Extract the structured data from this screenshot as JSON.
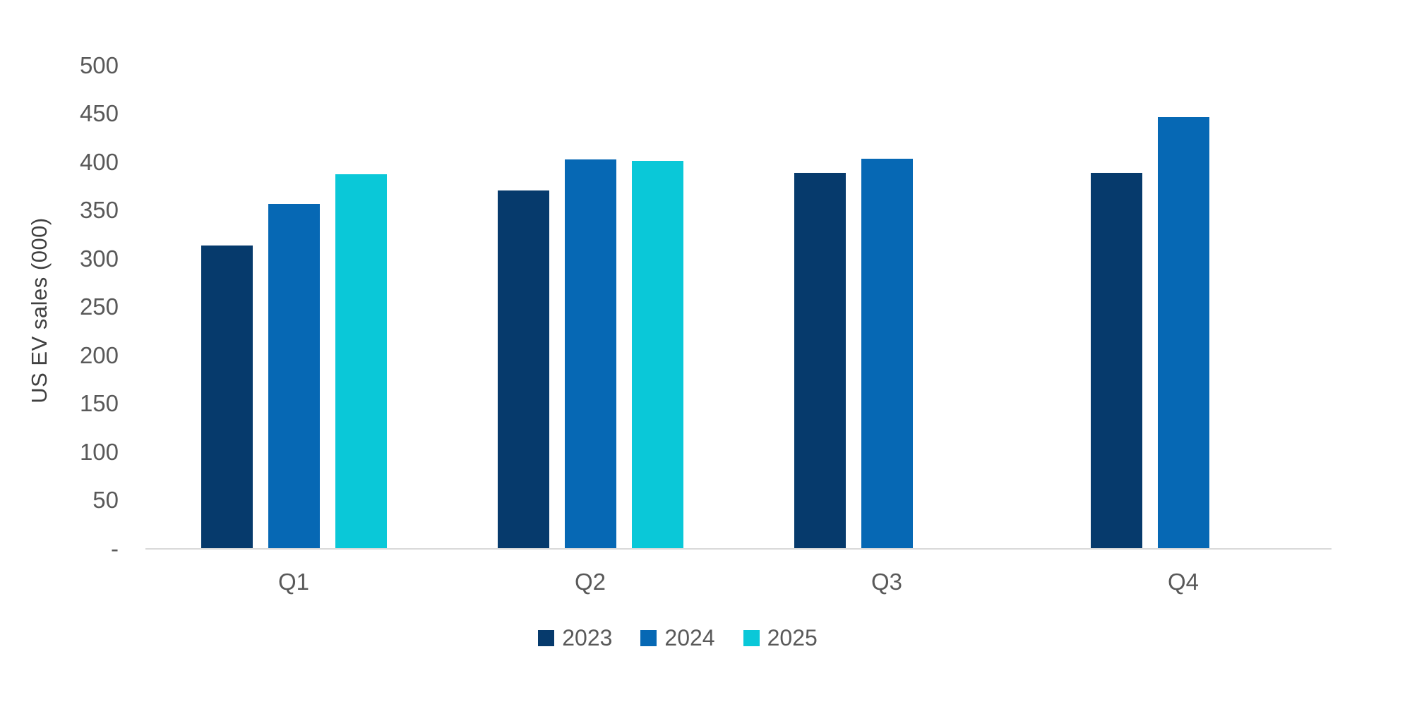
{
  "chart_data": {
    "type": "bar",
    "title": "",
    "xlabel": "",
    "ylabel": "US EV sales (000)",
    "categories": [
      "Q1",
      "Q2",
      "Q3",
      "Q4"
    ],
    "series": [
      {
        "name": "2023",
        "color": "#063a6c",
        "values": [
          313,
          370,
          388,
          388
        ]
      },
      {
        "name": "2024",
        "color": "#0668b4",
        "values": [
          356,
          402,
          403,
          446
        ]
      },
      {
        "name": "2025",
        "color": "#0ac8d8",
        "values": [
          387,
          401,
          null,
          null
        ]
      }
    ],
    "ylim": [
      0,
      500
    ],
    "yticks": [
      {
        "label": "500",
        "value": 500
      },
      {
        "label": "450",
        "value": 450
      },
      {
        "label": "400",
        "value": 400
      },
      {
        "label": "350",
        "value": 350
      },
      {
        "label": "300",
        "value": 300
      },
      {
        "label": "250",
        "value": 250
      },
      {
        "label": "200",
        "value": 200
      },
      {
        "label": "150",
        "value": 150
      },
      {
        "label": "100",
        "value": 100
      },
      {
        "label": "50",
        "value": 50
      },
      {
        "label": "-",
        "value": 0
      }
    ],
    "grid": false,
    "legend_position": "bottom",
    "axis_line_color": "#d9d9d9",
    "text_color": "#595959"
  }
}
